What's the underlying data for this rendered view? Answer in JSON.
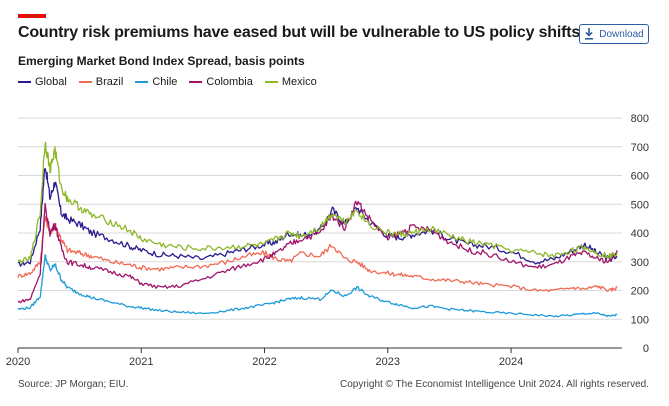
{
  "header": {
    "title": "Country risk premiums have eased but will be vulnerable to US policy shifts",
    "subtitle": "Emerging Market Bond Index Spread, basis points",
    "accent_color": "#e3120b",
    "download_label": "Download",
    "download_icon": "download-icon"
  },
  "footer": {
    "source": "Source: JP Morgan; EIU.",
    "copyright": "Copyright © The Economist Intelligence Unit 2024. All rights reserved."
  },
  "chart_data": {
    "type": "line",
    "title": "Country risk premiums have eased but will be vulnerable to US policy shifts",
    "subtitle": "Emerging Market Bond Index Spread, basis points",
    "xlabel": "",
    "ylabel": "",
    "x_ticks": [
      "2020",
      "2021",
      "2022",
      "2023",
      "2024"
    ],
    "y_ticks": [
      0,
      100,
      200,
      300,
      400,
      500,
      600,
      700,
      800
    ],
    "ylim": [
      0,
      800
    ],
    "xlim": [
      2020.0,
      2024.9
    ],
    "y_axis_position": "right",
    "grid": "horizontal",
    "legend_position": "top-left",
    "series": [
      {
        "name": "Global",
        "color": "#2a1b8f",
        "x": [
          2020.0,
          2020.1,
          2020.18,
          2020.22,
          2020.26,
          2020.3,
          2020.35,
          2020.4,
          2020.5,
          2020.6,
          2020.75,
          2020.9,
          2021.0,
          2021.15,
          2021.3,
          2021.5,
          2021.7,
          2021.85,
          2022.0,
          2022.1,
          2022.2,
          2022.3,
          2022.45,
          2022.55,
          2022.65,
          2022.75,
          2022.85,
          2023.0,
          2023.1,
          2023.2,
          2023.35,
          2023.5,
          2023.65,
          2023.8,
          2024.0,
          2024.2,
          2024.35,
          2024.5,
          2024.6,
          2024.7,
          2024.8,
          2024.86
        ],
        "y": [
          290,
          300,
          420,
          640,
          520,
          580,
          470,
          450,
          430,
          400,
          380,
          355,
          340,
          325,
          320,
          310,
          330,
          345,
          360,
          370,
          400,
          390,
          410,
          480,
          430,
          490,
          440,
          390,
          385,
          395,
          410,
          380,
          360,
          355,
          335,
          300,
          310,
          340,
          360,
          330,
          310,
          315
        ]
      },
      {
        "name": "Brazil",
        "color": "#f06b55",
        "x": [
          2020.0,
          2020.1,
          2020.18,
          2020.22,
          2020.26,
          2020.3,
          2020.35,
          2020.4,
          2020.5,
          2020.6,
          2020.75,
          2020.9,
          2021.0,
          2021.15,
          2021.3,
          2021.5,
          2021.7,
          2021.85,
          2022.0,
          2022.1,
          2022.2,
          2022.3,
          2022.45,
          2022.55,
          2022.65,
          2022.75,
          2022.85,
          2023.0,
          2023.1,
          2023.2,
          2023.35,
          2023.5,
          2023.65,
          2023.8,
          2024.0,
          2024.2,
          2024.35,
          2024.5,
          2024.6,
          2024.7,
          2024.8,
          2024.86
        ],
        "y": [
          250,
          260,
          300,
          460,
          400,
          430,
          380,
          340,
          330,
          320,
          300,
          290,
          280,
          275,
          280,
          285,
          300,
          320,
          330,
          310,
          300,
          330,
          320,
          360,
          310,
          300,
          270,
          260,
          255,
          250,
          240,
          235,
          230,
          220,
          215,
          200,
          200,
          210,
          205,
          215,
          200,
          210
        ]
      },
      {
        "name": "Chile",
        "color": "#1f9bd8",
        "x": [
          2020.0,
          2020.1,
          2020.18,
          2020.22,
          2020.26,
          2020.3,
          2020.35,
          2020.4,
          2020.5,
          2020.6,
          2020.75,
          2020.9,
          2021.0,
          2021.15,
          2021.3,
          2021.5,
          2021.7,
          2021.85,
          2022.0,
          2022.1,
          2022.2,
          2022.3,
          2022.45,
          2022.55,
          2022.65,
          2022.75,
          2022.85,
          2023.0,
          2023.1,
          2023.2,
          2023.35,
          2023.5,
          2023.65,
          2023.8,
          2024.0,
          2024.2,
          2024.35,
          2024.5,
          2024.6,
          2024.7,
          2024.8,
          2024.86
        ],
        "y": [
          135,
          140,
          180,
          320,
          270,
          290,
          240,
          210,
          190,
          175,
          160,
          145,
          140,
          130,
          125,
          120,
          130,
          140,
          150,
          160,
          170,
          175,
          170,
          200,
          180,
          210,
          180,
          160,
          150,
          140,
          145,
          135,
          130,
          125,
          120,
          115,
          110,
          115,
          120,
          120,
          110,
          115
        ]
      },
      {
        "name": "Colombia",
        "color": "#a0156b",
        "x": [
          2020.0,
          2020.1,
          2020.18,
          2020.22,
          2020.26,
          2020.3,
          2020.35,
          2020.4,
          2020.5,
          2020.6,
          2020.75,
          2020.9,
          2021.0,
          2021.15,
          2021.3,
          2021.5,
          2021.7,
          2021.85,
          2022.0,
          2022.1,
          2022.2,
          2022.3,
          2022.45,
          2022.55,
          2022.65,
          2022.75,
          2022.85,
          2023.0,
          2023.1,
          2023.2,
          2023.35,
          2023.5,
          2023.65,
          2023.8,
          2024.0,
          2024.2,
          2024.35,
          2024.5,
          2024.6,
          2024.7,
          2024.8,
          2024.86
        ],
        "y": [
          160,
          170,
          260,
          490,
          400,
          430,
          350,
          300,
          290,
          280,
          265,
          250,
          225,
          210,
          215,
          240,
          270,
          290,
          310,
          330,
          360,
          380,
          400,
          460,
          420,
          510,
          450,
          380,
          400,
          420,
          410,
          370,
          340,
          330,
          300,
          280,
          290,
          320,
          330,
          310,
          300,
          340
        ]
      },
      {
        "name": "Mexico",
        "color": "#8db82a",
        "x": [
          2020.0,
          2020.1,
          2020.18,
          2020.22,
          2020.26,
          2020.3,
          2020.35,
          2020.4,
          2020.5,
          2020.6,
          2020.75,
          2020.9,
          2021.0,
          2021.15,
          2021.3,
          2021.5,
          2021.7,
          2021.85,
          2022.0,
          2022.1,
          2022.2,
          2022.3,
          2022.45,
          2022.55,
          2022.65,
          2022.75,
          2022.85,
          2023.0,
          2023.1,
          2023.2,
          2023.35,
          2023.5,
          2023.65,
          2023.8,
          2024.0,
          2024.2,
          2024.35,
          2024.5,
          2024.6,
          2024.7,
          2024.8,
          2024.86
        ],
        "y": [
          300,
          310,
          470,
          720,
          620,
          690,
          560,
          520,
          490,
          460,
          440,
          410,
          380,
          360,
          350,
          345,
          350,
          355,
          360,
          380,
          400,
          390,
          420,
          470,
          440,
          480,
          430,
          400,
          395,
          400,
          415,
          390,
          370,
          360,
          340,
          330,
          320,
          340,
          350,
          330,
          320,
          330
        ]
      }
    ]
  }
}
